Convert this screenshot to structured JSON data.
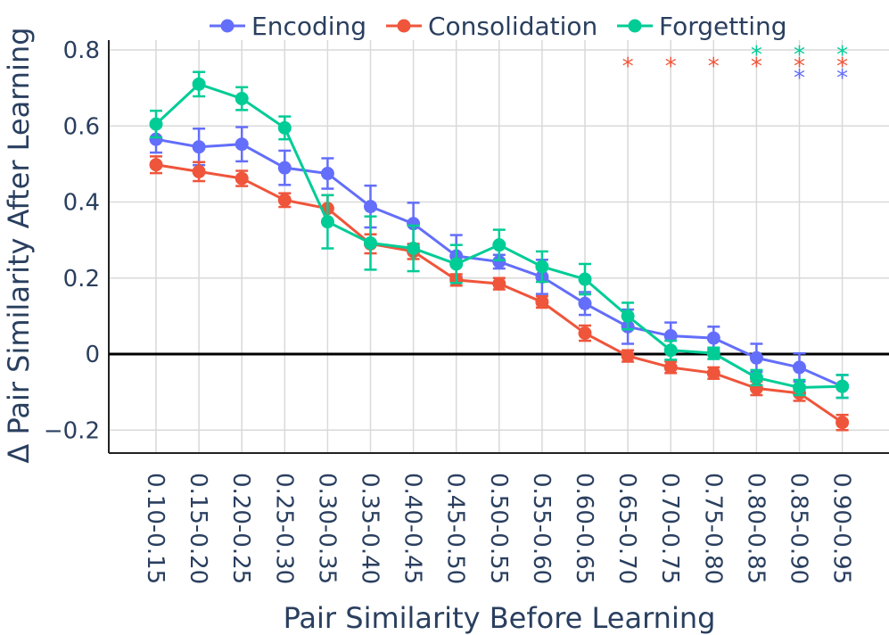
{
  "chart_data": {
    "type": "line",
    "title": "",
    "xlabel": "Pair Similarity Before Learning",
    "ylabel": "Δ Pair Similarity After Learning",
    "ylim": [
      -0.26,
      0.82
    ],
    "yticks": [
      -0.2,
      0,
      0.2,
      0.4,
      0.6,
      0.8
    ],
    "ytick_labels": [
      "−0.2",
      "0",
      "0.2",
      "0.4",
      "0.6",
      "0.8"
    ],
    "zero_line": true,
    "grid": true,
    "legend_position": "top",
    "categories": [
      "0.10-0.15",
      "0.15-0.20",
      "0.20-0.25",
      "0.25-0.30",
      "0.30-0.35",
      "0.35-0.40",
      "0.40-0.45",
      "0.45-0.50",
      "0.50-0.55",
      "0.55-0.60",
      "0.60-0.65",
      "0.65-0.70",
      "0.70-0.75",
      "0.75-0.80",
      "0.80-0.85",
      "0.85-0.90",
      "0.90-0.95"
    ],
    "series": [
      {
        "name": "Encoding",
        "color": "#636efa",
        "values": [
          0.565,
          0.545,
          0.552,
          0.49,
          0.475,
          0.388,
          0.343,
          0.258,
          0.243,
          0.203,
          0.133,
          0.072,
          0.048,
          0.042,
          -0.01,
          -0.035,
          -0.085
        ],
        "errors": [
          0.035,
          0.048,
          0.045,
          0.045,
          0.04,
          0.055,
          0.055,
          0.055,
          0.018,
          0.045,
          0.03,
          0.045,
          0.035,
          0.03,
          0.037,
          0.037,
          0.03
        ],
        "significant": [
          false,
          false,
          false,
          false,
          false,
          false,
          false,
          false,
          false,
          false,
          false,
          false,
          false,
          false,
          false,
          true,
          true
        ]
      },
      {
        "name": "Consolidation",
        "color": "#ef553b",
        "values": [
          0.498,
          0.48,
          0.462,
          0.405,
          0.383,
          0.29,
          0.27,
          0.195,
          0.185,
          0.137,
          0.055,
          -0.005,
          -0.035,
          -0.05,
          -0.09,
          -0.103,
          -0.18
        ],
        "errors": [
          0.022,
          0.025,
          0.02,
          0.018,
          0.035,
          0.025,
          0.02,
          0.015,
          0.015,
          0.015,
          0.02,
          0.015,
          0.015,
          0.015,
          0.018,
          0.02,
          0.02
        ],
        "significant": [
          false,
          false,
          false,
          false,
          false,
          false,
          false,
          false,
          false,
          false,
          false,
          true,
          true,
          true,
          true,
          true,
          true
        ]
      },
      {
        "name": "Forgetting",
        "color": "#00cc96",
        "values": [
          0.605,
          0.71,
          0.672,
          0.595,
          0.348,
          0.292,
          0.278,
          0.237,
          0.287,
          0.23,
          0.197,
          0.1,
          0.01,
          0.002,
          -0.062,
          -0.088,
          -0.085
        ],
        "errors": [
          0.035,
          0.032,
          0.03,
          0.03,
          0.07,
          0.07,
          0.06,
          0.05,
          0.04,
          0.04,
          0.04,
          0.035,
          0.025,
          0.015,
          0.02,
          0.02,
          0.03
        ],
        "significant": [
          false,
          false,
          false,
          false,
          false,
          false,
          false,
          false,
          false,
          false,
          false,
          false,
          false,
          false,
          true,
          true,
          true
        ]
      }
    ],
    "significance_marker": "*"
  }
}
